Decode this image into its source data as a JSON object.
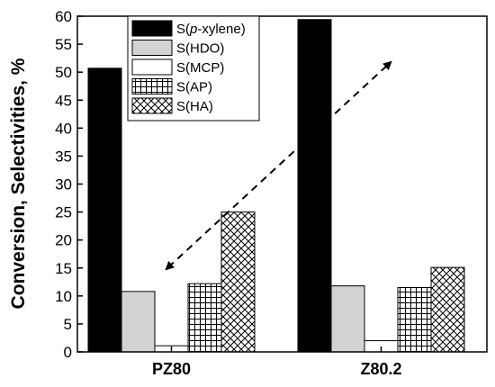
{
  "chart_data": {
    "type": "bar",
    "categories": [
      "PZ80",
      "Z80.2"
    ],
    "series": [
      {
        "name_pre": "S(",
        "name_italic": "p",
        "name_post": "-xylene)",
        "values": [
          50.7,
          59.4
        ],
        "fill": "#000000"
      },
      {
        "name": "S(HDO)",
        "values": [
          10.8,
          11.8
        ],
        "fill": "#d3d3d3"
      },
      {
        "name": "S(MCP)",
        "values": [
          1.1,
          2.0
        ],
        "fill": "#ffffff"
      },
      {
        "name": "S(AP)",
        "values": [
          12.2,
          11.5
        ],
        "fill": "url(#grid-pattern)"
      },
      {
        "name": "S(HA)",
        "values": [
          25.0,
          15.1
        ],
        "fill": "url(#cross-pattern)"
      }
    ],
    "ylabel": "Conversion, Selectivities, %",
    "ylim": [
      0,
      60
    ],
    "yticks": [
      "0",
      "5",
      "10",
      "15",
      "20",
      "25",
      "30",
      "35",
      "40",
      "45",
      "50",
      "55",
      "60"
    ],
    "legend_position": "top-center",
    "annotation": "dashed double-headed arrow",
    "grid": false
  }
}
